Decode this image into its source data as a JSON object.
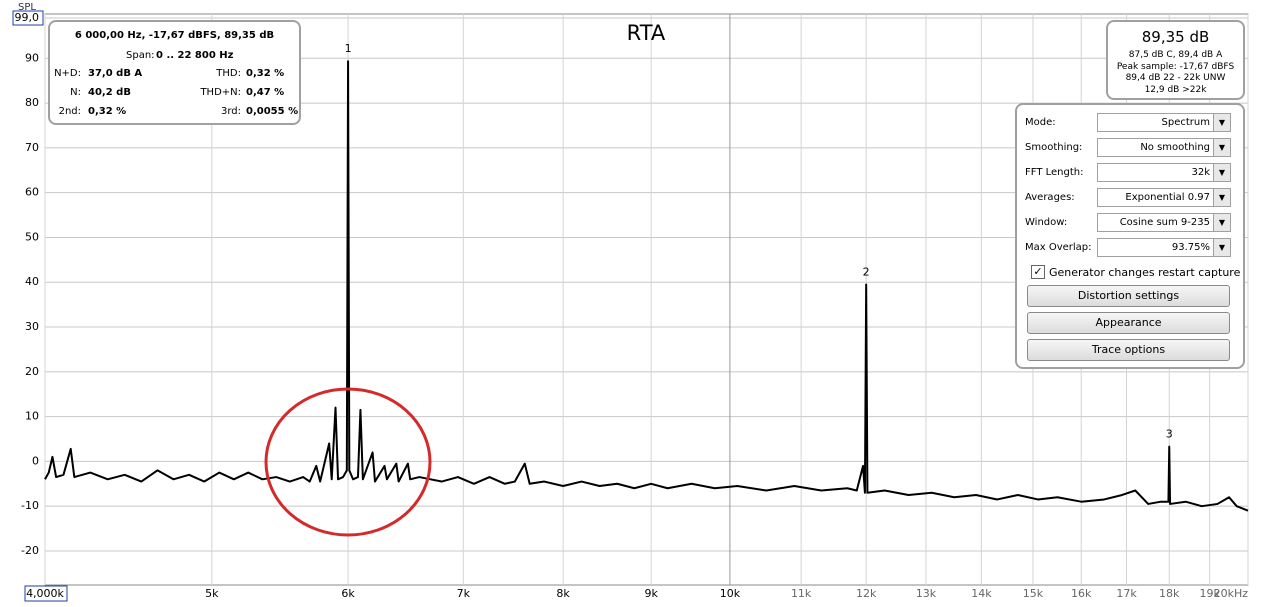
{
  "chart_data": {
    "type": "line",
    "title": "RTA",
    "y_label": "SPL",
    "log_x": true,
    "grid": true,
    "color": "#000000",
    "xlim": [
      4000,
      20000
    ],
    "ylim": [
      -27.6,
      99
    ],
    "xticks": [
      {
        "value": 4000,
        "label": "4,000k"
      },
      {
        "value": 5000,
        "label": "5k"
      },
      {
        "value": 6000,
        "label": "6k"
      },
      {
        "value": 7000,
        "label": "7k"
      },
      {
        "value": 8000,
        "label": "8k"
      },
      {
        "value": 9000,
        "label": "9k"
      },
      {
        "value": 10000,
        "label": "10k"
      },
      {
        "value": 11000,
        "label": "11k"
      },
      {
        "value": 12000,
        "label": "12k"
      },
      {
        "value": 13000,
        "label": "13k"
      },
      {
        "value": 14000,
        "label": "14k"
      },
      {
        "value": 15000,
        "label": "15k"
      },
      {
        "value": 16000,
        "label": "16k"
      },
      {
        "value": 17000,
        "label": "17k"
      },
      {
        "value": 18000,
        "label": "18k"
      },
      {
        "value": 19000,
        "label": "19k"
      },
      {
        "value": 20000,
        "label": "20kHz"
      }
    ],
    "yticks": [
      {
        "value": 99,
        "label": "99,0"
      },
      90,
      80,
      70,
      60,
      50,
      40,
      30,
      20,
      10,
      0,
      -10,
      -20
    ],
    "x": [
      4000,
      4020,
      4040,
      4060,
      4100,
      4140,
      4160,
      4250,
      4350,
      4450,
      4550,
      4650,
      4750,
      4850,
      4950,
      5050,
      5150,
      5250,
      5350,
      5450,
      5550,
      5650,
      5700,
      5750,
      5780,
      5850,
      5870,
      5900,
      5920,
      5960,
      5990,
      6000,
      6010,
      6040,
      6080,
      6100,
      6120,
      6200,
      6220,
      6300,
      6320,
      6400,
      6420,
      6500,
      6520,
      6600,
      6700,
      6800,
      6950,
      7100,
      7250,
      7400,
      7500,
      7600,
      7650,
      7800,
      8000,
      8200,
      8400,
      8600,
      8800,
      9000,
      9200,
      9500,
      9800,
      10100,
      10500,
      10900,
      11300,
      11700,
      11850,
      11950,
      11980,
      12000,
      12020,
      12300,
      12700,
      13100,
      13500,
      13900,
      14300,
      14700,
      15100,
      15500,
      16000,
      16500,
      16900,
      17200,
      17500,
      17800,
      17980,
      18000,
      18020,
      18400,
      18800,
      19200,
      19500,
      19700,
      20000
    ],
    "values": [
      -4,
      -2.5,
      1,
      -3.5,
      -3,
      2.8,
      -3.5,
      -2.5,
      -4,
      -3,
      -4.5,
      -2,
      -4,
      -3,
      -4.5,
      -2.5,
      -4,
      -2.5,
      -4,
      -3.5,
      -4.5,
      -3.5,
      -4.5,
      -1,
      -4.5,
      4,
      -4,
      12,
      -4,
      -3.5,
      -2,
      89.35,
      -2,
      -4,
      -3.5,
      11.5,
      -4,
      2,
      -4.5,
      -1,
      -4,
      -0.5,
      -4.5,
      -0.5,
      -4,
      -3.5,
      -4,
      -4.5,
      -3.5,
      -5,
      -3.5,
      -5,
      -4.5,
      -0.5,
      -5,
      -4.5,
      -5.5,
      -4.5,
      -5.5,
      -5,
      -6,
      -5,
      -6,
      -5,
      -6,
      -5.5,
      -6.5,
      -5.5,
      -6.5,
      -6,
      -6.5,
      -1,
      -7,
      39.5,
      -7,
      -6.5,
      -7.5,
      -7,
      -8,
      -7.5,
      -8.5,
      -7.5,
      -8.5,
      -8,
      -9,
      -8.5,
      -7.5,
      -6.5,
      -9.5,
      -9,
      -9,
      3.3,
      -9.5,
      -9,
      -10,
      -9.5,
      -8,
      -10,
      -11
    ],
    "peak_labels": [
      {
        "label": "1",
        "x": 6000
      },
      {
        "label": "2",
        "x": 12000
      },
      {
        "label": "3",
        "x": 18000
      }
    ]
  },
  "info_panel": {
    "header": "6 000,00 Hz, -17,67 dBFS, 89,35 dB",
    "span_label": "Span:",
    "span_value": "0 .. 22 800 Hz",
    "rows": [
      [
        "N+D:",
        "37,0 dB A",
        "THD:",
        "0,32 %"
      ],
      [
        "N:",
        "40,2 dB",
        "THD+N:",
        "0,47 %"
      ],
      [
        "2nd:",
        "0,32 %",
        "3rd:",
        "0,0055 %"
      ]
    ]
  },
  "level_panel": {
    "main": "89,35 dB",
    "lines": [
      "87,5 dB C, 89,4 dB A",
      "Peak sample: -17,67 dBFS",
      "89,4 dB 22 - 22k UNW",
      "12,9 dB >22k"
    ]
  },
  "controls": {
    "fields": [
      {
        "label": "Mode:",
        "value": "Spectrum"
      },
      {
        "label": "Smoothing:",
        "value": "No  smoothing"
      },
      {
        "label": "FFT Length:",
        "value": "32k"
      },
      {
        "label": "Averages:",
        "value": "Exponential 0.97"
      },
      {
        "label": "Window:",
        "value": "Cosine sum 9-235"
      },
      {
        "label": "Max Overlap:",
        "value": "93.75%"
      }
    ],
    "checkbox": "Generator changes restart capture",
    "buttons": [
      "Distortion settings",
      "Appearance",
      "Trace options"
    ]
  }
}
